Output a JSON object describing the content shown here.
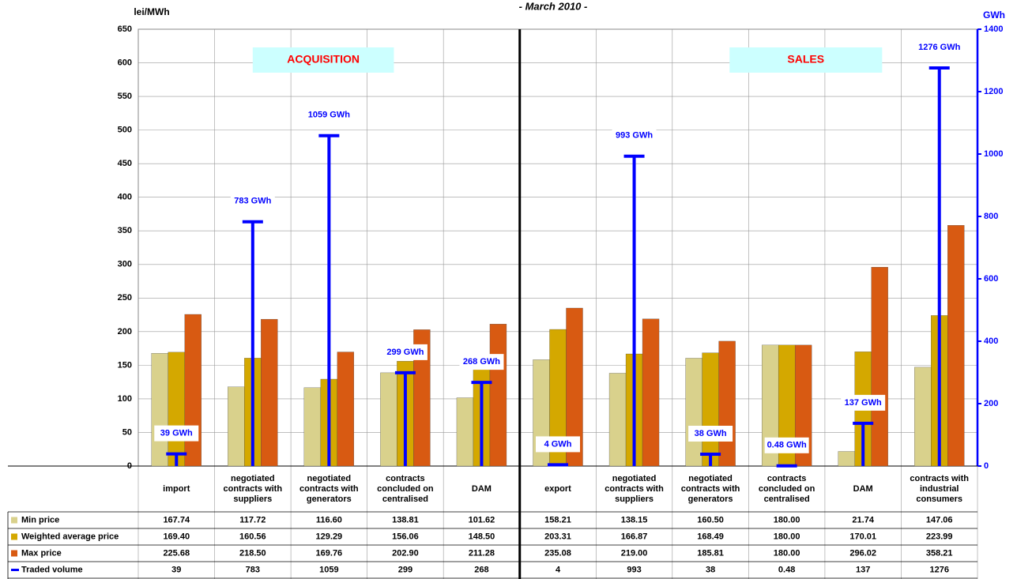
{
  "chart_data": {
    "type": "bar",
    "title": "- March 2010 -",
    "y_label": "lei/MWh",
    "y2_label": "GWh",
    "annotations": [
      "ACQUISITION",
      "SALES"
    ],
    "categories": [
      "import",
      "negotiated contracts with suppliers",
      "negotiated contracts with generators",
      "contracts concluded on centralised",
      "DAM",
      "export",
      "negotiated contracts with suppliers",
      "negotiated contracts with generators",
      "contracts concluded on centralised",
      "DAM",
      "contracts with industrial consumers"
    ],
    "series": [
      {
        "name": "Min price",
        "color": "#d9d18c",
        "values": [
          167.74,
          117.72,
          116.6,
          138.81,
          101.62,
          158.21,
          138.15,
          160.5,
          180.0,
          21.74,
          147.06
        ],
        "value_labels": [
          "167.74",
          "117.72",
          "116.60",
          "138.81",
          "101.62",
          "158.21",
          "138.15",
          "160.50",
          "180.00",
          "21.74",
          "147.06"
        ]
      },
      {
        "name": "Weighted average price",
        "color": "#d4a800",
        "values": [
          169.4,
          160.56,
          129.29,
          156.06,
          148.5,
          203.31,
          166.87,
          168.49,
          180.0,
          170.01,
          223.99
        ],
        "value_labels": [
          "169.40",
          "160.56",
          "129.29",
          "156.06",
          "148.50",
          "203.31",
          "166.87",
          "168.49",
          "180.00",
          "170.01",
          "223.99"
        ]
      },
      {
        "name": "Max price",
        "color": "#d85a12",
        "values": [
          225.68,
          218.5,
          169.76,
          202.9,
          211.28,
          235.08,
          219.0,
          185.81,
          180.0,
          296.02,
          358.21
        ],
        "value_labels": [
          "225.68",
          "218.50",
          "169.76",
          "202.90",
          "211.28",
          "235.08",
          "219.00",
          "185.81",
          "180.00",
          "296.02",
          "358.21"
        ]
      },
      {
        "name": "Traded volume",
        "color": "#0000ff",
        "axis": "y2",
        "values": [
          39,
          783,
          1059,
          299,
          268,
          4,
          993,
          38,
          0.48,
          137,
          1276
        ],
        "value_labels": [
          "39 GWh",
          "783 GWh",
          "1059 GWh",
          "299 GWh",
          "268 GWh",
          "4 GWh",
          "993 GWh",
          "38 GWh",
          "0.48 GWh",
          "137 GWh",
          "1276 GWh"
        ]
      }
    ],
    "ylim": [
      0,
      650
    ],
    "yticks": [
      0,
      50,
      100,
      150,
      200,
      250,
      300,
      350,
      400,
      450,
      500,
      550,
      600,
      650
    ],
    "y2lim": [
      0,
      1400
    ],
    "y2ticks": [
      0,
      200,
      400,
      600,
      800,
      1000,
      1200,
      1400
    ],
    "grid": true
  }
}
